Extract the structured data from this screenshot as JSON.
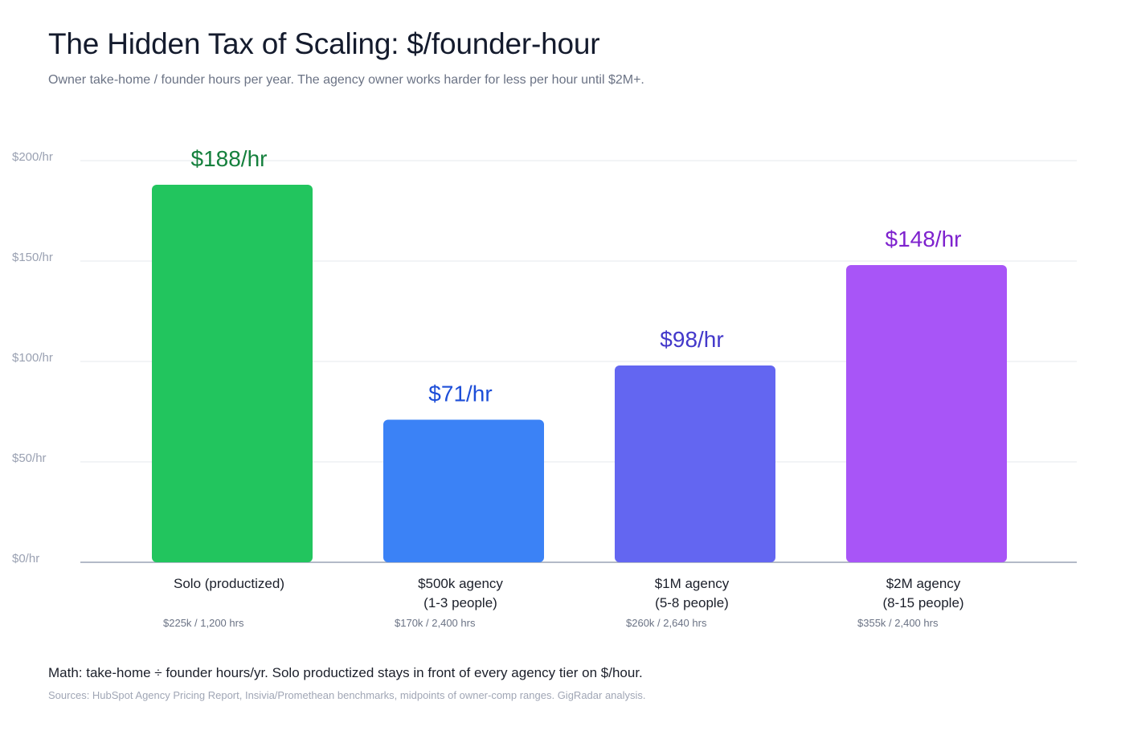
{
  "header": {
    "title": "The Hidden Tax of Scaling: $/founder-hour",
    "subtitle": "Owner take-home / founder hours per year. The agency owner works harder for less per hour until $2M+."
  },
  "footer": {
    "math_note": "Math: take-home ÷ founder hours/yr. Solo productized stays in front of every agency tier on $/hour.",
    "sources": "Sources: HubSpot Agency Pricing Report, Insivia/Promethean benchmarks, midpoints of owner-comp ranges. GigRadar analysis."
  },
  "chart_data": {
    "type": "bar",
    "ylim": [
      0,
      200
    ],
    "yticks": [
      {
        "value": 0,
        "label": "$0/hr"
      },
      {
        "value": 50,
        "label": "$50/hr"
      },
      {
        "value": 100,
        "label": "$100/hr"
      },
      {
        "value": 150,
        "label": "$150/hr"
      },
      {
        "value": 200,
        "label": "$200/hr"
      }
    ],
    "grid": true,
    "bars": [
      {
        "category": [
          "Solo (productized)"
        ],
        "value": 188,
        "value_label": "$188/hr",
        "detail": "$225k / 1,200 hrs",
        "color": "#22c55e",
        "label_color": "#15803d"
      },
      {
        "category": [
          "$500k agency",
          "(1-3 people)"
        ],
        "value": 71,
        "value_label": "$71/hr",
        "detail": "$170k / 2,400 hrs",
        "color": "#3b82f6",
        "label_color": "#1d4ed8"
      },
      {
        "category": [
          "$1M agency",
          "(5-8 people)"
        ],
        "value": 98,
        "value_label": "$98/hr",
        "detail": "$260k / 2,640 hrs",
        "color": "#6366f1",
        "label_color": "#4338ca"
      },
      {
        "category": [
          "$2M agency",
          "(8-15 people)"
        ],
        "value": 148,
        "value_label": "$148/hr",
        "detail": "$355k / 2,400 hrs",
        "color": "#a855f7",
        "label_color": "#7e22ce"
      }
    ]
  }
}
